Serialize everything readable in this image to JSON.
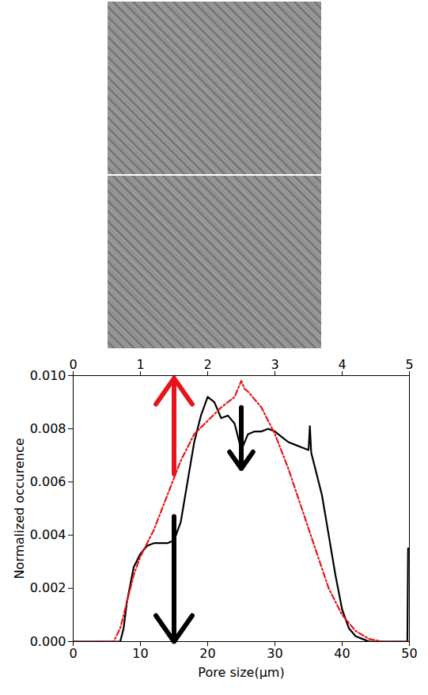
{
  "chart_data": {
    "type": "line",
    "xlabel": "Pore size(μm)",
    "ylabel": "Normalized occurence",
    "xlim": [
      0,
      50
    ],
    "xticks": [
      0,
      10,
      20,
      30,
      40,
      50
    ],
    "x2lim": [
      0,
      5
    ],
    "x2ticks": [
      0,
      1,
      2,
      3,
      4,
      5
    ],
    "ylim": [
      0,
      0.01
    ],
    "yticks": [
      {
        "value": 0,
        "label": "0.000"
      },
      {
        "value": 0.002,
        "label": "0.002"
      },
      {
        "value": 0.004,
        "label": "0.004"
      },
      {
        "value": 0.006,
        "label": "0.006"
      },
      {
        "value": 0.008,
        "label": "0.008"
      },
      {
        "value": 0.01,
        "label": "0.010"
      }
    ],
    "grid": false,
    "series": [
      {
        "color": "#000000",
        "line_style": "solid",
        "x": [
          0,
          7,
          7.5,
          8,
          9,
          10,
          11,
          12,
          13,
          14,
          15,
          16,
          17,
          18,
          19,
          20,
          21,
          22,
          23,
          24,
          25,
          26,
          27,
          28,
          29,
          30,
          31,
          32,
          33,
          34,
          35,
          35.2,
          35.4,
          36,
          37,
          38,
          39,
          40,
          41,
          42,
          43,
          44,
          49.7,
          49.8,
          50
        ],
        "values": [
          0,
          0,
          0.0005,
          0.0015,
          0.0028,
          0.0033,
          0.0036,
          0.0037,
          0.0037,
          0.0037,
          0.0038,
          0.0045,
          0.006,
          0.0075,
          0.0085,
          0.0092,
          0.009,
          0.0084,
          0.0085,
          0.0082,
          0.0072,
          0.0078,
          0.0079,
          0.0079,
          0.008,
          0.0079,
          0.0077,
          0.0075,
          0.0074,
          0.0073,
          0.0072,
          0.0081,
          0.0071,
          0.0065,
          0.0055,
          0.004,
          0.0025,
          0.0012,
          0.0005,
          0.0002,
          0.0001,
          0,
          0,
          0.0035,
          0.0035
        ]
      },
      {
        "color": "#e8141c",
        "line_style": "dashdot",
        "x": [
          0,
          6,
          7,
          8,
          9,
          10,
          12,
          14,
          16,
          18,
          20,
          22,
          24,
          25,
          25.5,
          26,
          28,
          30,
          32,
          34,
          36,
          38,
          40,
          42,
          44,
          46,
          50
        ],
        "values": [
          0,
          0,
          0.0005,
          0.0015,
          0.0025,
          0.0032,
          0.0042,
          0.0055,
          0.0068,
          0.0078,
          0.0083,
          0.0088,
          0.0092,
          0.0098,
          0.0095,
          0.0094,
          0.0088,
          0.0078,
          0.0065,
          0.005,
          0.0035,
          0.002,
          0.001,
          0.0004,
          0.0001,
          0,
          0
        ]
      }
    ],
    "arrows": [
      {
        "x": 15,
        "y_start": 0.0063,
        "y_end": 0.0099,
        "color": "#e8141c"
      },
      {
        "x": 15,
        "y_start": 0.0047,
        "y_end": 0,
        "color": "#000000"
      },
      {
        "x": 25,
        "y_start": 0.0088,
        "y_end": 0.0065,
        "color": "#000000"
      }
    ]
  }
}
